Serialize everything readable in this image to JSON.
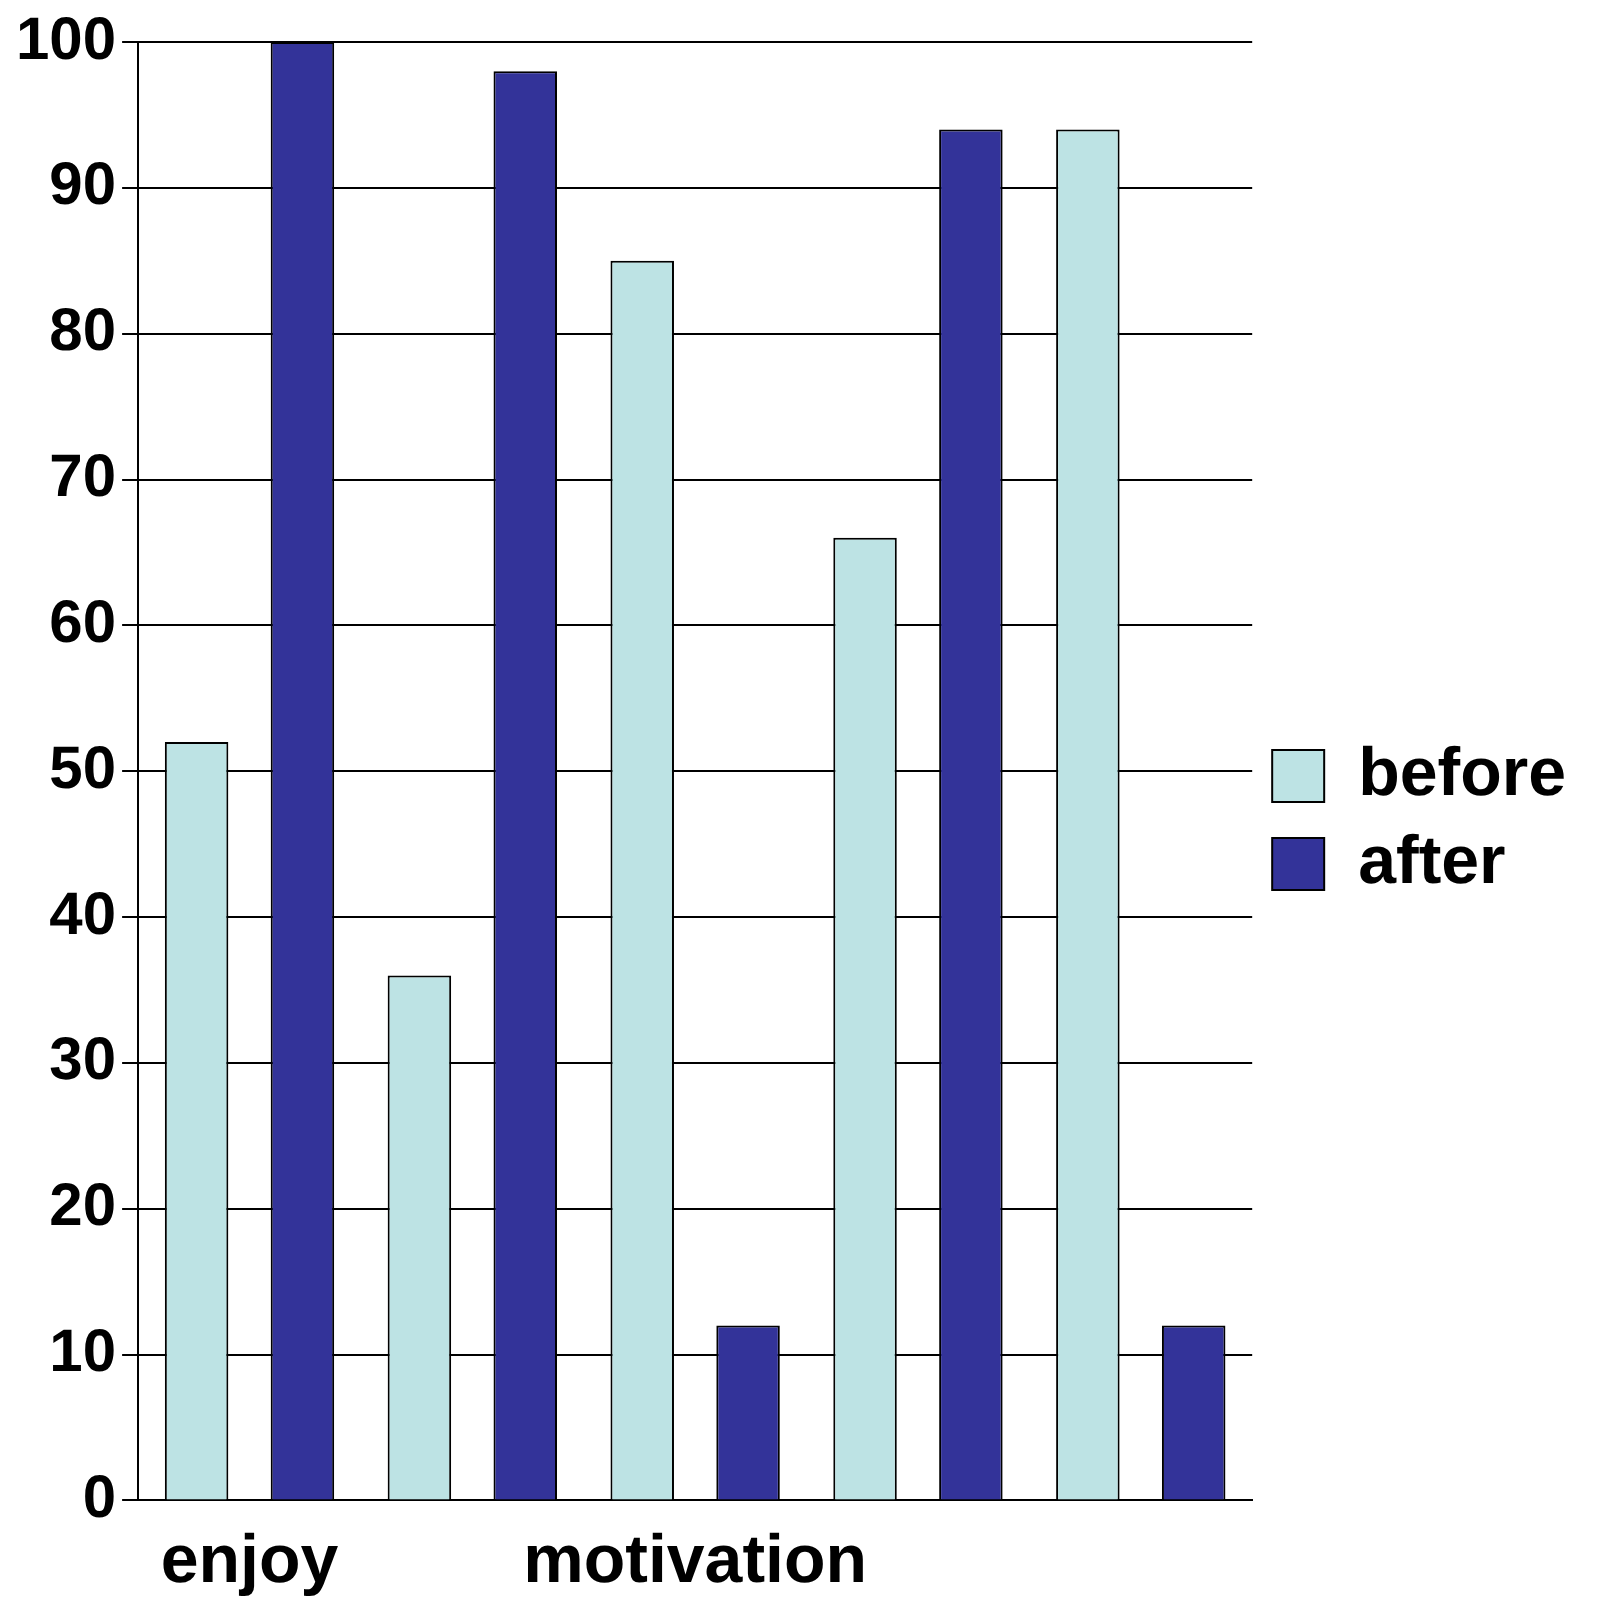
{
  "chart_data": {
    "type": "bar",
    "categories": [
      "enjoy",
      null,
      "motivation",
      null,
      null
    ],
    "series": [
      {
        "name": "before",
        "color": "#bde3e4",
        "values": [
          52,
          36,
          85,
          66,
          94
        ]
      },
      {
        "name": "after",
        "color": "#333399",
        "values": [
          100,
          98,
          12,
          94,
          12
        ]
      }
    ],
    "ylim": [
      0,
      100
    ],
    "yticks": [
      0,
      10,
      20,
      30,
      40,
      50,
      60,
      70,
      80,
      90,
      100
    ],
    "grid": "y",
    "legend": "right"
  }
}
